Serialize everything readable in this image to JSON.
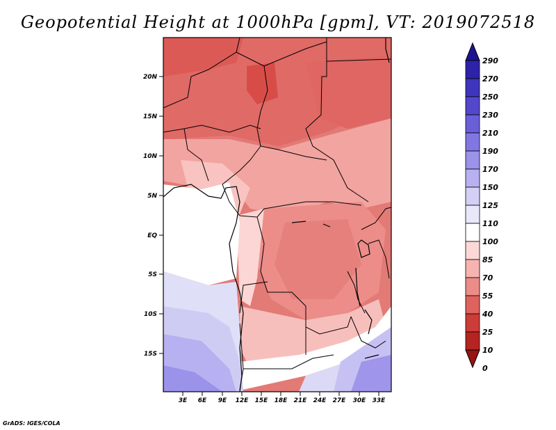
{
  "title": "Geopotential Height at 1000hPa [gpm], VT: 2019072518",
  "footer": "GrADS: IGES/COLA",
  "map": {
    "lat_labels": [
      "20N",
      "15N",
      "10N",
      "5N",
      "EQ",
      "5S",
      "10S",
      "15S"
    ],
    "lon_labels": [
      "3E",
      "6E",
      "9E",
      "12E",
      "15E",
      "18E",
      "21E",
      "24E",
      "27E",
      "30E",
      "33E"
    ],
    "extent": {
      "lon_min": 0,
      "lon_max": 35,
      "lat_min": -20,
      "lat_max": 25
    }
  },
  "colorbar": {
    "labels": [
      "290",
      "270",
      "250",
      "230",
      "210",
      "190",
      "170",
      "150",
      "125",
      "110",
      "100",
      "85",
      "70",
      "55",
      "40",
      "25",
      "10",
      "0"
    ],
    "colors": [
      "#1c1491",
      "#2d23a8",
      "#3f35bd",
      "#5447cc",
      "#6a5fd9",
      "#8277e2",
      "#9b92ea",
      "#b7b1f1",
      "#d3d0f6",
      "#e9e8fb",
      "#ffffff",
      "#fcd9d7",
      "#f6b4b1",
      "#ec8c88",
      "#de625e",
      "#cc3c38",
      "#b42421",
      "#961413"
    ]
  }
}
